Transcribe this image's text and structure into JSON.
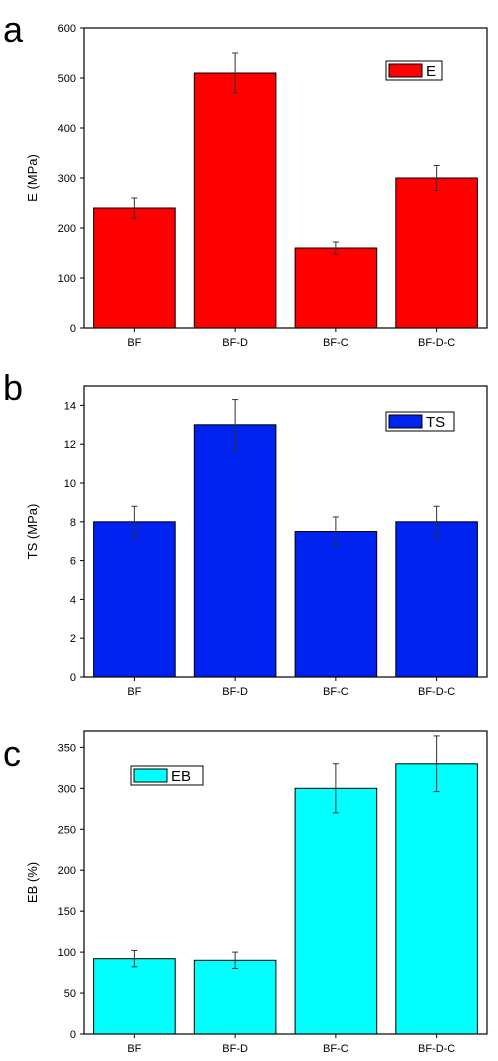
{
  "chart_data": [
    {
      "type": "bar",
      "panel_label": "a",
      "categories": [
        "BF",
        "BF-D",
        "BF-C",
        "BF-D-C"
      ],
      "series": [
        {
          "name": "E",
          "values": [
            240,
            510,
            160,
            300
          ]
        }
      ],
      "error": [
        20,
        40,
        12,
        25
      ],
      "ylabel": "E (MPa)",
      "ylim": [
        0,
        600
      ],
      "yticks": [
        0,
        100,
        200,
        300,
        400,
        500,
        600
      ],
      "color": "#ff0000",
      "legend_position": "top-right",
      "grid": false
    },
    {
      "type": "bar",
      "panel_label": "b",
      "categories": [
        "BF",
        "BF-D",
        "BF-C",
        "BF-D-C"
      ],
      "series": [
        {
          "name": "TS",
          "values": [
            8,
            13,
            7.5,
            8
          ]
        }
      ],
      "error": [
        0.8,
        1.3,
        0.75,
        0.8
      ],
      "ylabel": "TS (MPa)",
      "ylim": [
        0,
        15
      ],
      "yticks": [
        0,
        2,
        4,
        6,
        8,
        10,
        12,
        14
      ],
      "color": "#0022ee",
      "legend_position": "top-right",
      "grid": false
    },
    {
      "type": "bar",
      "panel_label": "c",
      "categories": [
        "BF",
        "BF-D",
        "BF-C",
        "BF-D-C"
      ],
      "series": [
        {
          "name": "EB",
          "values": [
            92,
            90,
            300,
            330
          ]
        }
      ],
      "error": [
        10,
        10,
        30,
        34
      ],
      "ylabel": "EB (%)",
      "ylim": [
        0,
        370
      ],
      "yticks": [
        0,
        50,
        100,
        150,
        200,
        250,
        300,
        350
      ],
      "color": "#00ffff",
      "legend_position": "top-left",
      "grid": false
    }
  ]
}
